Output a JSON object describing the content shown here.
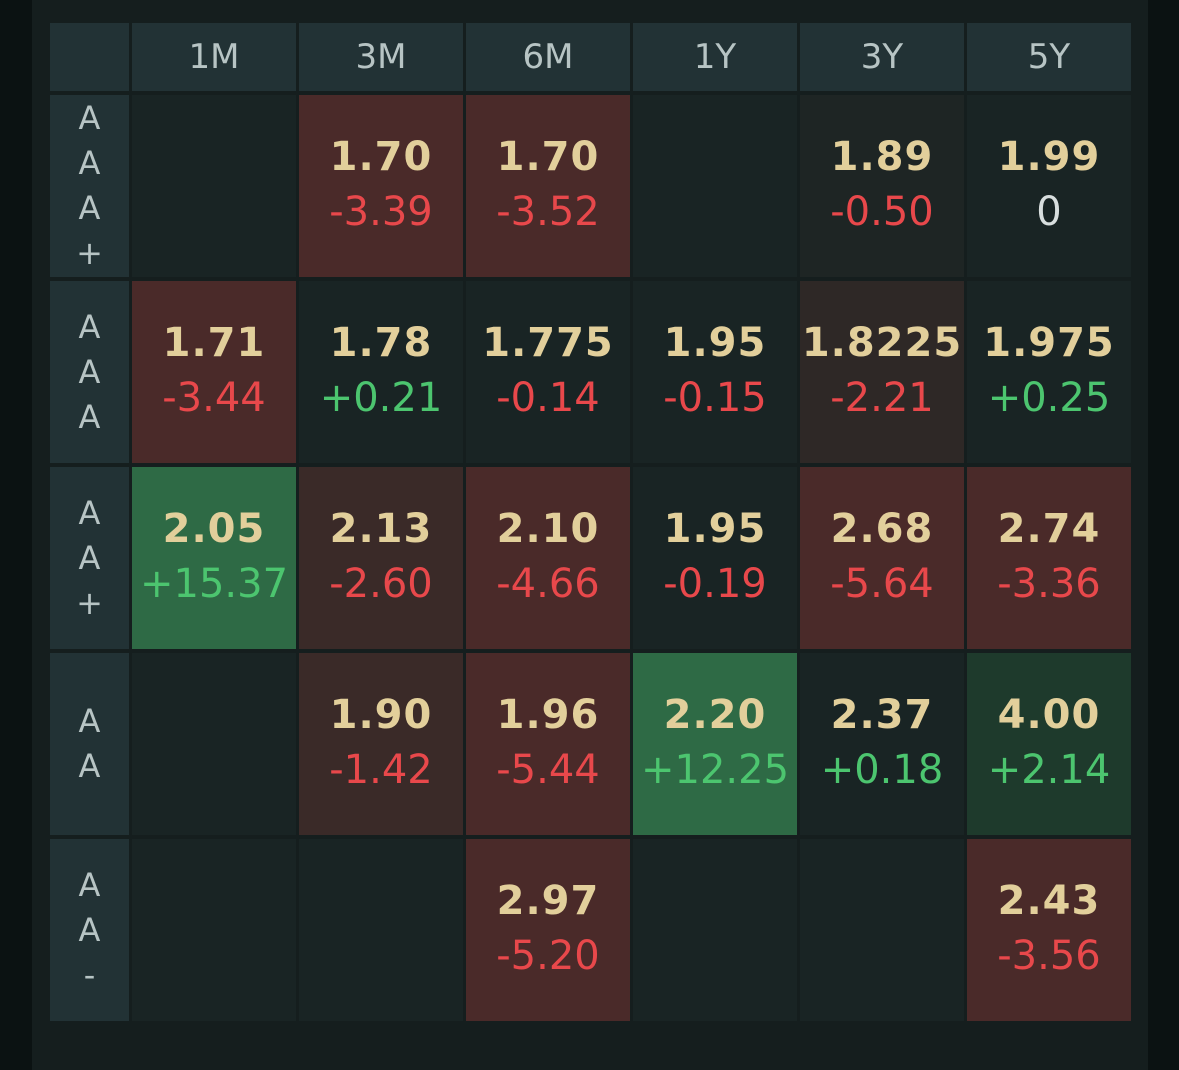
{
  "colors": {
    "header_bg": "#223235",
    "cell_bg": "#192424",
    "red_strong": "#4a2a29",
    "green_strong": "#2e6a45",
    "price_text": "#e2cf9b",
    "neg_text": "#e8484b",
    "pos_text": "#4cc56f"
  },
  "columns": [
    "1M",
    "3M",
    "6M",
    "1Y",
    "3Y",
    "5Y"
  ],
  "rows": [
    {
      "label": [
        "A",
        "A",
        "A",
        "+"
      ],
      "cells": [
        null,
        {
          "price": "1.70",
          "change": "-3.39"
        },
        {
          "price": "1.70",
          "change": "-3.52"
        },
        null,
        {
          "price": "1.89",
          "change": "-0.50"
        },
        {
          "price": "1.99",
          "change": "0"
        }
      ]
    },
    {
      "label": [
        "A",
        "A",
        "A"
      ],
      "cells": [
        {
          "price": "1.71",
          "change": "-3.44"
        },
        {
          "price": "1.78",
          "change": "+0.21"
        },
        {
          "price": "1.775",
          "change": "-0.14"
        },
        {
          "price": "1.95",
          "change": "-0.15"
        },
        {
          "price": "1.8225",
          "change": "-2.21"
        },
        {
          "price": "1.975",
          "change": "+0.25"
        }
      ]
    },
    {
      "label": [
        "A",
        "A",
        "+"
      ],
      "cells": [
        {
          "price": "2.05",
          "change": "+15.37"
        },
        {
          "price": "2.13",
          "change": "-2.60"
        },
        {
          "price": "2.10",
          "change": "-4.66"
        },
        {
          "price": "1.95",
          "change": "-0.19"
        },
        {
          "price": "2.68",
          "change": "-5.64"
        },
        {
          "price": "2.74",
          "change": "-3.36"
        }
      ]
    },
    {
      "label": [
        "A",
        "A"
      ],
      "cells": [
        null,
        {
          "price": "1.90",
          "change": "-1.42"
        },
        {
          "price": "1.96",
          "change": "-5.44"
        },
        {
          "price": "2.20",
          "change": "+12.25"
        },
        {
          "price": "2.37",
          "change": "+0.18"
        },
        {
          "price": "4.00",
          "change": "+2.14"
        }
      ]
    },
    {
      "label": [
        "A",
        "A",
        "-"
      ],
      "cells": [
        null,
        null,
        {
          "price": "2.97",
          "change": "-5.20"
        },
        null,
        null,
        {
          "price": "2.43",
          "change": "-3.56"
        }
      ]
    }
  ]
}
